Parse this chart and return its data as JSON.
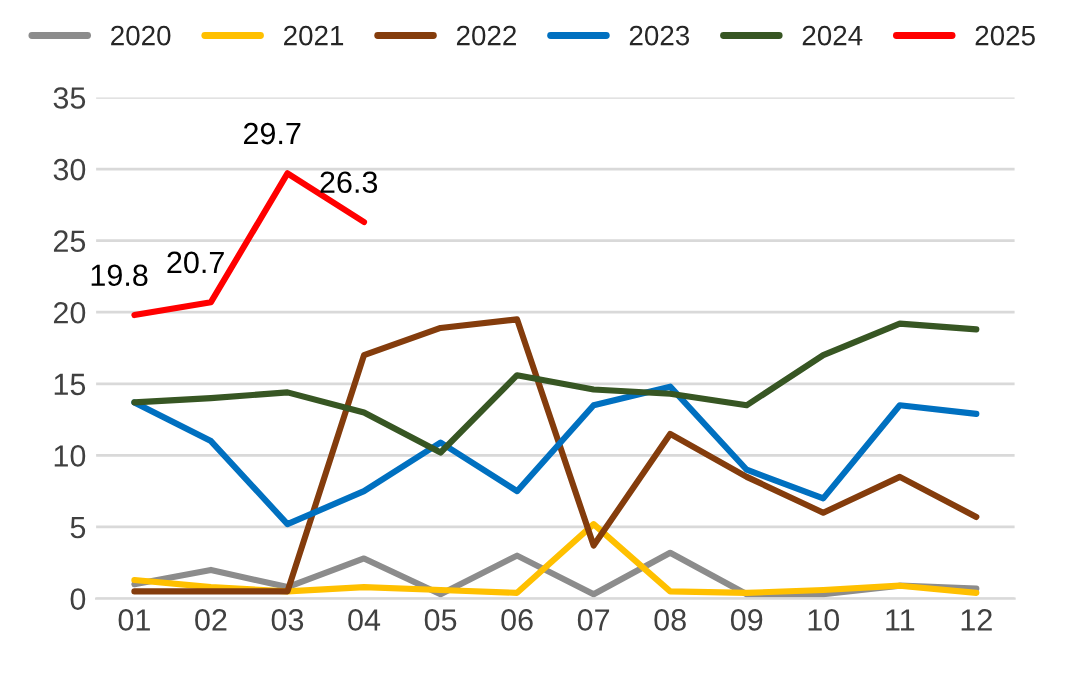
{
  "chart_data": {
    "type": "line",
    "categories": [
      "01",
      "02",
      "03",
      "04",
      "05",
      "06",
      "07",
      "08",
      "09",
      "10",
      "11",
      "12"
    ],
    "series": [
      {
        "name": "2020",
        "color": "#8c8c8c",
        "values": [
          1.0,
          2.0,
          0.8,
          2.8,
          0.3,
          3.0,
          0.3,
          3.2,
          0.3,
          0.3,
          0.9,
          0.7
        ]
      },
      {
        "name": "2021",
        "color": "#ffc000",
        "values": [
          1.3,
          0.8,
          0.5,
          0.8,
          0.6,
          0.4,
          5.2,
          0.5,
          0.4,
          0.6,
          0.9,
          0.4
        ]
      },
      {
        "name": "2022",
        "color": "#843c0c",
        "values": [
          0.5,
          0.5,
          0.5,
          17.0,
          18.9,
          19.5,
          3.7,
          11.5,
          8.5,
          6.0,
          8.5,
          5.7
        ]
      },
      {
        "name": "2023",
        "color": "#0070c0",
        "values": [
          13.7,
          11.0,
          5.2,
          7.5,
          10.9,
          7.5,
          13.5,
          14.8,
          9.0,
          7.0,
          13.5,
          12.9
        ]
      },
      {
        "name": "2024",
        "color": "#375623",
        "values": [
          13.7,
          14.0,
          14.4,
          13.0,
          10.2,
          15.6,
          14.6,
          14.3,
          13.5,
          17.0,
          19.2,
          18.8
        ]
      },
      {
        "name": "2025",
        "color": "#ff0000",
        "values": [
          19.8,
          20.7,
          29.7,
          26.3,
          null,
          null,
          null,
          null,
          null,
          null,
          null,
          null
        ],
        "value_labels": [
          "19.8",
          "20.7",
          "29.7",
          "26.3",
          null,
          null,
          null,
          null,
          null,
          null,
          null,
          null
        ]
      }
    ],
    "ylim": [
      0,
      35
    ],
    "yticks": [
      0,
      5,
      10,
      15,
      20,
      25,
      30,
      35
    ],
    "grid": "y",
    "legend": "top",
    "marker": "none",
    "line_style": "solid"
  }
}
